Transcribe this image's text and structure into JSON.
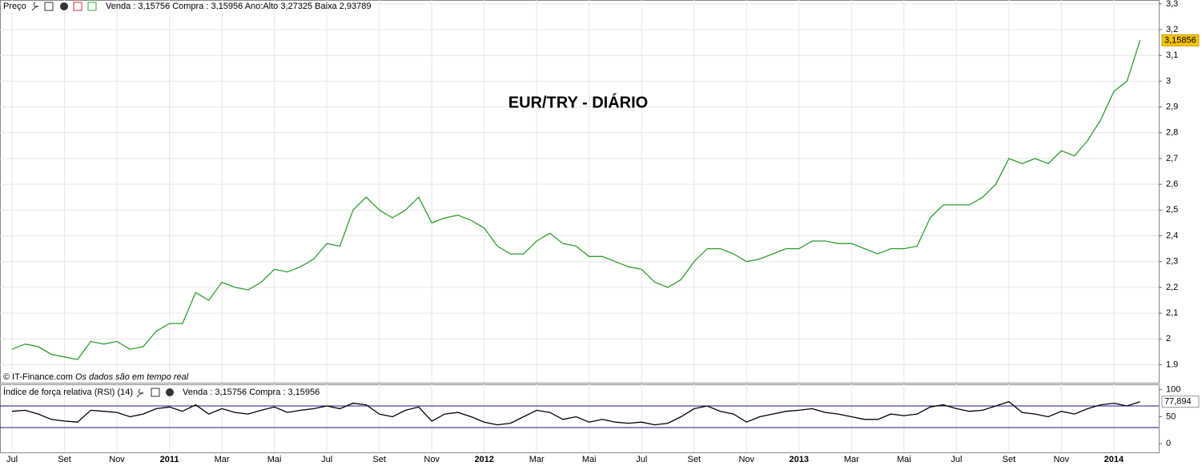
{
  "header": {
    "label": "Preço",
    "quote": "Venda : 3,15756 Compra : 3,15956 Ano:Alto 3,27325 Baixa 2,93789"
  },
  "footer": {
    "source": "© IT-Finance.com",
    "note": "Os dados são em tempo real"
  },
  "chart_data": [
    {
      "type": "line",
      "title": "EUR/TRY - DIÁRIO",
      "categories": [
        "Jul",
        null,
        null,
        null,
        "Set",
        null,
        null,
        null,
        "Nov",
        null,
        null,
        null,
        "2011",
        null,
        null,
        null,
        "Mar",
        null,
        null,
        null,
        "Mai",
        null,
        null,
        null,
        "Jul",
        null,
        null,
        null,
        "Set",
        null,
        null,
        null,
        "Nov",
        null,
        null,
        null,
        "2012",
        null,
        null,
        null,
        "Mar",
        null,
        null,
        null,
        "Mai",
        null,
        null,
        null,
        "Jul",
        null,
        null,
        null,
        "Set",
        null,
        null,
        null,
        "Nov",
        null,
        null,
        null,
        "2013",
        null,
        null,
        null,
        "Mar",
        null,
        null,
        null,
        "Mai",
        null,
        null,
        null,
        "Jul",
        null,
        null,
        null,
        "Set",
        null,
        null,
        null,
        "Nov",
        null,
        null,
        null,
        "2014",
        null,
        null
      ],
      "series": [
        {
          "color": "#2e9e2e",
          "values": [
            1.96,
            1.98,
            1.97,
            1.94,
            1.93,
            1.92,
            1.99,
            1.98,
            1.99,
            1.96,
            1.97,
            2.03,
            2.06,
            2.06,
            2.18,
            2.15,
            2.22,
            2.2,
            2.19,
            2.22,
            2.27,
            2.26,
            2.28,
            2.31,
            2.37,
            2.36,
            2.5,
            2.55,
            2.5,
            2.47,
            2.5,
            2.55,
            2.45,
            2.47,
            2.48,
            2.46,
            2.43,
            2.36,
            2.33,
            2.33,
            2.38,
            2.41,
            2.37,
            2.36,
            2.32,
            2.32,
            2.3,
            2.28,
            2.27,
            2.22,
            2.2,
            2.23,
            2.3,
            2.35,
            2.35,
            2.33,
            2.3,
            2.31,
            2.33,
            2.35,
            2.35,
            2.38,
            2.38,
            2.37,
            2.37,
            2.35,
            2.33,
            2.35,
            2.35,
            2.36,
            2.47,
            2.52,
            2.52,
            2.52,
            2.55,
            2.6,
            2.7,
            2.68,
            2.7,
            2.68,
            2.73,
            2.71,
            2.77,
            2.85,
            2.96,
            3.0,
            3.15856
          ],
          "last_label": "3,15856"
        }
      ],
      "ylim": [
        1.83,
        3.315
      ],
      "yticks": [
        1.9,
        2,
        {
          "value": 2.1,
          "label": "2,1"
        },
        {
          "value": 2.2,
          "label": "2,2"
        },
        {
          "value": 2.3,
          "label": "2,3"
        },
        {
          "value": 2.4,
          "label": "2,4"
        },
        {
          "value": 2.5,
          "label": "2,5"
        },
        {
          "value": 2.6,
          "label": "2,6"
        },
        {
          "value": 2.7,
          "label": "2,7"
        },
        {
          "value": 2.8,
          "label": "2,8"
        },
        {
          "value": 2.9,
          "label": "2,9"
        },
        3,
        {
          "value": 3.1,
          "label": "3,1"
        },
        {
          "value": 3.2,
          "label": "3,2"
        },
        {
          "value": 3.3,
          "label": "3,3"
        }
      ],
      "grid": true
    },
    {
      "type": "line",
      "title": "Índice de força relativa (RSI) (14)",
      "quote": "Venda : 3,15756 Compra : 3,15956",
      "series": [
        {
          "color": "#000000",
          "values": [
            60,
            62,
            55,
            45,
            42,
            40,
            62,
            60,
            58,
            50,
            55,
            65,
            68,
            60,
            72,
            55,
            65,
            58,
            55,
            62,
            68,
            58,
            62,
            65,
            70,
            65,
            75,
            72,
            55,
            50,
            62,
            68,
            42,
            55,
            58,
            50,
            40,
            35,
            38,
            50,
            62,
            58,
            45,
            50,
            40,
            45,
            40,
            38,
            40,
            35,
            38,
            50,
            65,
            70,
            60,
            55,
            40,
            50,
            55,
            60,
            62,
            65,
            58,
            55,
            50,
            45,
            45,
            55,
            52,
            55,
            68,
            72,
            65,
            60,
            62,
            70,
            78,
            58,
            55,
            50,
            60,
            55,
            65,
            72,
            75,
            70,
            77.894
          ],
          "last_label": "77,894"
        }
      ],
      "levels": [
        70,
        30
      ],
      "level_color": "#1a1a8c",
      "ylim": [
        -16,
        110
      ],
      "yticks": [
        0,
        50,
        100
      ]
    }
  ]
}
